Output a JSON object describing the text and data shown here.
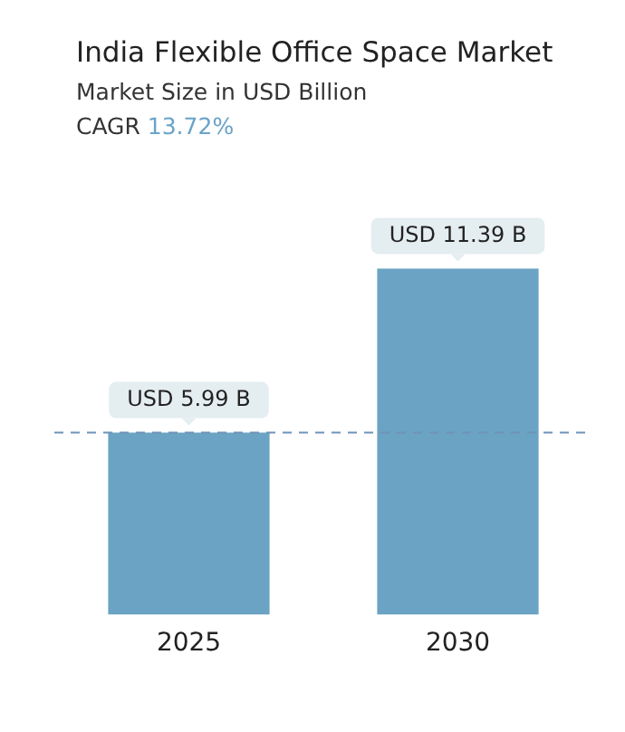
{
  "chart_data": {
    "type": "bar",
    "title": "India Flexible Office Space Market",
    "subtitle": "Market Size in USD Billion",
    "annotations": [
      "CAGR 13.72%"
    ],
    "categories": [
      "2025",
      "2030"
    ],
    "values": [
      5.99,
      11.39
    ],
    "value_labels": [
      "USD 5.99 B",
      "USD 11.39 B"
    ],
    "colors": [
      "#6aa3c3",
      "#6aa3c3"
    ],
    "ref_lines": [
      {
        "axis": "y",
        "value": 5.99,
        "color": "#6f93b8",
        "line_style": "dashed"
      }
    ],
    "grid": false,
    "legend": false
  }
}
